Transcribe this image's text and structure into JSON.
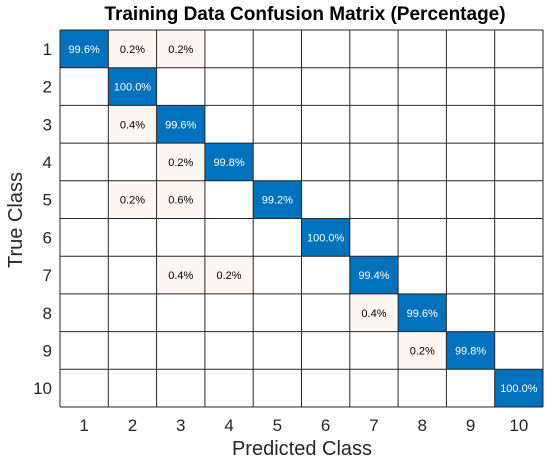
{
  "chart_data": {
    "type": "heatmap",
    "title": "Training Data Confusion Matrix (Percentage)",
    "xlabel": "Predicted Class",
    "ylabel": "True Class",
    "x_categories": [
      "1",
      "2",
      "3",
      "4",
      "5",
      "6",
      "7",
      "8",
      "9",
      "10"
    ],
    "y_categories": [
      "1",
      "2",
      "3",
      "4",
      "5",
      "6",
      "7",
      "8",
      "9",
      "10"
    ],
    "cells": [
      {
        "row": 0,
        "col": 0,
        "value": 99.6,
        "label": "99.6%"
      },
      {
        "row": 0,
        "col": 1,
        "value": 0.2,
        "label": "0.2%"
      },
      {
        "row": 0,
        "col": 2,
        "value": 0.2,
        "label": "0.2%"
      },
      {
        "row": 1,
        "col": 1,
        "value": 100.0,
        "label": "100.0%"
      },
      {
        "row": 2,
        "col": 1,
        "value": 0.4,
        "label": "0.4%"
      },
      {
        "row": 2,
        "col": 2,
        "value": 99.6,
        "label": "99.6%"
      },
      {
        "row": 3,
        "col": 2,
        "value": 0.2,
        "label": "0.2%"
      },
      {
        "row": 3,
        "col": 3,
        "value": 99.8,
        "label": "99.8%"
      },
      {
        "row": 4,
        "col": 1,
        "value": 0.2,
        "label": "0.2%"
      },
      {
        "row": 4,
        "col": 2,
        "value": 0.6,
        "label": "0.6%"
      },
      {
        "row": 4,
        "col": 4,
        "value": 99.2,
        "label": "99.2%"
      },
      {
        "row": 5,
        "col": 5,
        "value": 100.0,
        "label": "100.0%"
      },
      {
        "row": 6,
        "col": 2,
        "value": 0.4,
        "label": "0.4%"
      },
      {
        "row": 6,
        "col": 3,
        "value": 0.2,
        "label": "0.2%"
      },
      {
        "row": 6,
        "col": 6,
        "value": 99.4,
        "label": "99.4%"
      },
      {
        "row": 7,
        "col": 6,
        "value": 0.4,
        "label": "0.4%"
      },
      {
        "row": 7,
        "col": 7,
        "value": 99.6,
        "label": "99.6%"
      },
      {
        "row": 8,
        "col": 7,
        "value": 0.2,
        "label": "0.2%"
      },
      {
        "row": 8,
        "col": 8,
        "value": 99.8,
        "label": "99.8%"
      },
      {
        "row": 9,
        "col": 9,
        "value": 100.0,
        "label": "100.0%"
      }
    ],
    "colors": {
      "diagonal_fill": "#0072BD",
      "diagonal_text": "#ffffff",
      "offdiagonal_fill": "#FDF6F3",
      "offdiagonal_text": "#000000",
      "empty_fill": "#ffffff",
      "grid_line": "#262626"
    },
    "grid": true,
    "legend": "none"
  }
}
